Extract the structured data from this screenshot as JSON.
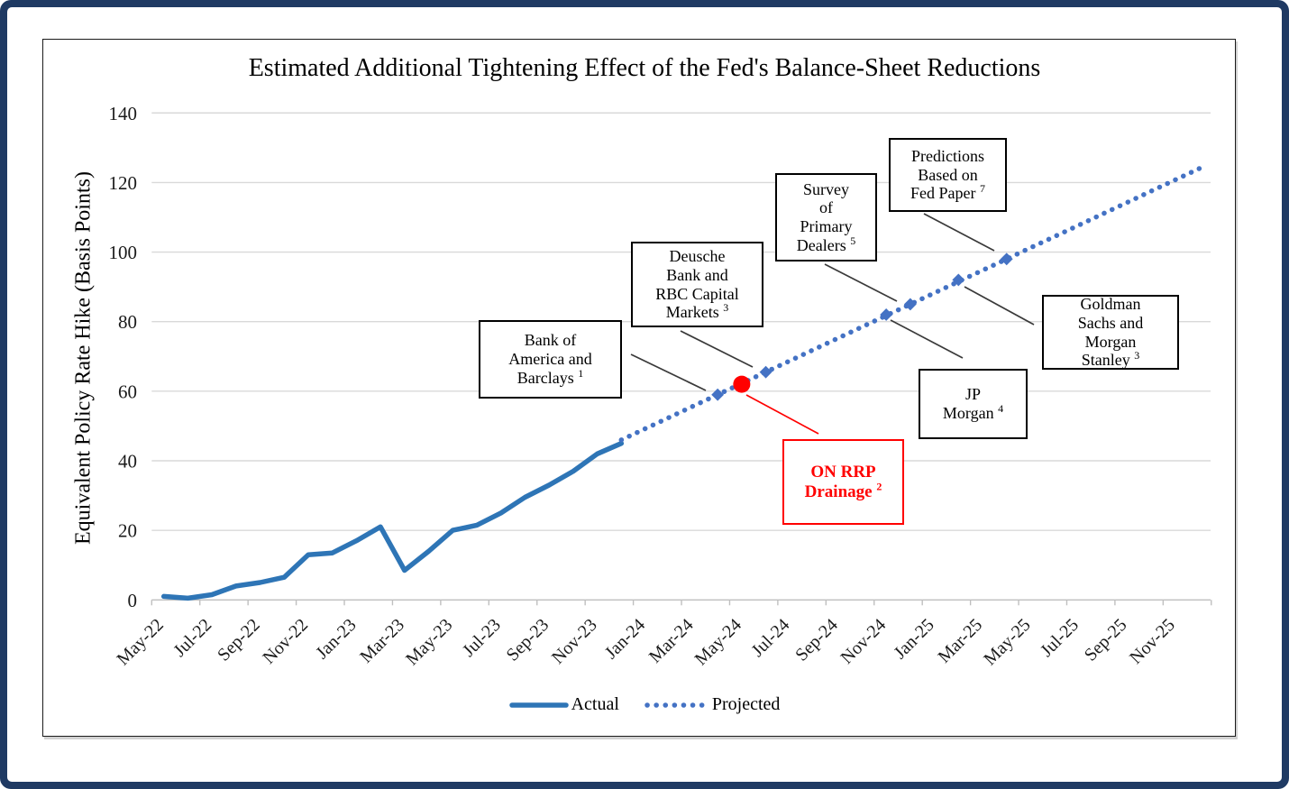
{
  "title": "Estimated Additional Tightening Effect of the Fed's Balance-Sheet Reductions",
  "y_axis": {
    "title": "Equivalent Policy Rate Hike (Basis Points)",
    "ticks": [
      0,
      20,
      40,
      60,
      80,
      100,
      120,
      140
    ]
  },
  "x_axis": {
    "labels": [
      "May-22",
      "Jul-22",
      "Sep-22",
      "Nov-22",
      "Jan-23",
      "Mar-23",
      "May-23",
      "Jul-23",
      "Sep-23",
      "Nov-23",
      "Jan-24",
      "Mar-24",
      "May-24",
      "Jul-24",
      "Sep-24",
      "Nov-24",
      "Jan-25",
      "Mar-25",
      "May-25",
      "Jul-25",
      "Sep-25",
      "Nov-25"
    ]
  },
  "legend": [
    {
      "label": "Actual",
      "style": "solid"
    },
    {
      "label": "Projected",
      "style": "dotted"
    }
  ],
  "colors": {
    "actual_line": "#2E75B6",
    "projected_line": "#4472C4",
    "marker_diamond": "#4472C4",
    "marker_red": "#FF0000",
    "gridline": "#D9D9D9",
    "axis": "#BFBFBF",
    "frame": "#1F3A63",
    "annotation_border": "#000000",
    "annotation_red": "#FF0000"
  },
  "chart_data": {
    "type": "line",
    "title": "Estimated Additional Tightening Effect of the Fed's Balance-Sheet Reductions",
    "xlabel": "",
    "ylabel": "Equivalent Policy Rate Hike (Basis Points)",
    "ylim": [
      0,
      140
    ],
    "grid": "horizontal",
    "legend_position": "bottom",
    "x_unit": "month",
    "series": [
      {
        "name": "Actual",
        "style": "solid",
        "months": [
          "May-22",
          "Jun-22",
          "Jul-22",
          "Aug-22",
          "Sep-22",
          "Oct-22",
          "Nov-22",
          "Dec-22",
          "Jan-23",
          "Feb-23",
          "Mar-23",
          "Apr-23",
          "May-23",
          "Jun-23",
          "Jul-23",
          "Aug-23",
          "Sep-23",
          "Oct-23",
          "Nov-23",
          "Dec-23"
        ],
        "values": [
          1,
          0.5,
          1.5,
          4,
          5,
          6.5,
          13,
          13.5,
          17,
          21,
          8.5,
          14,
          20,
          21.5,
          25,
          29.5,
          33,
          37,
          42,
          45
        ]
      },
      {
        "name": "Projected",
        "style": "dotted",
        "months": [
          "Dec-23",
          "Jan-24",
          "Feb-24",
          "Mar-24",
          "Apr-24",
          "May-24",
          "Jun-24",
          "Jul-24",
          "Aug-24",
          "Sep-24",
          "Oct-24",
          "Nov-24",
          "Dec-24",
          "Jan-25",
          "Feb-25",
          "Mar-25",
          "Apr-25",
          "May-25",
          "Jun-25",
          "Jul-25",
          "Aug-25",
          "Sep-25",
          "Oct-25",
          "Nov-25",
          "Dec-25"
        ],
        "values": [
          46,
          49.25,
          52.5,
          55.75,
          59,
          62.25,
          65.5,
          68.75,
          72,
          75.25,
          78.5,
          81.75,
          85,
          88.25,
          91.5,
          94.75,
          98,
          101.25,
          104.5,
          107.75,
          111,
          114.25,
          117.5,
          120.75,
          124
        ]
      }
    ],
    "markers": [
      {
        "month": "Apr-24",
        "value": 59,
        "shape": "diamond",
        "color": "#4472C4",
        "label": "Bank of America and Barclays",
        "footnote": "1"
      },
      {
        "month": "May-24",
        "value": 62,
        "shape": "circle",
        "color": "#FF0000",
        "label": "ON RRP Drainage",
        "footnote": "2"
      },
      {
        "month": "Jun-24",
        "value": 65.5,
        "shape": "diamond",
        "color": "#4472C4",
        "label": "Deusche Bank and RBC Capital Markets",
        "footnote": "3"
      },
      {
        "month": "Nov-24",
        "value": 82,
        "shape": "diamond",
        "color": "#4472C4",
        "label": "JP Morgan",
        "footnote": "4"
      },
      {
        "month": "Dec-24",
        "value": 85,
        "shape": "diamond",
        "color": "#4472C4",
        "label": "Survey of Primary Dealers",
        "footnote": "5"
      },
      {
        "month": "Feb-25",
        "value": 92,
        "shape": "diamond",
        "color": "#4472C4",
        "label": "Goldman Sachs and Morgan Stanley",
        "footnote": "3"
      },
      {
        "month": "Apr-25",
        "value": 98,
        "shape": "diamond",
        "color": "#4472C4",
        "label": "Predictions Based on Fed Paper",
        "footnote": "7"
      }
    ]
  },
  "annotations": [
    {
      "id": "bofa",
      "lines": [
        "Bank of",
        "America and",
        "Barclays"
      ],
      "footnote": "1",
      "color": "black"
    },
    {
      "id": "deusche",
      "lines": [
        "Deusche",
        "Bank and",
        "RBC Capital",
        "Markets"
      ],
      "footnote": "3",
      "color": "black"
    },
    {
      "id": "survey",
      "lines": [
        "Survey",
        "of",
        "Primary",
        "Dealers"
      ],
      "footnote": "5",
      "color": "black"
    },
    {
      "id": "predictions",
      "lines": [
        "Predictions",
        "Based on",
        "Fed Paper"
      ],
      "footnote": "7",
      "color": "black"
    },
    {
      "id": "goldman",
      "lines": [
        "Goldman",
        "Sachs and",
        "Morgan",
        "Stanley"
      ],
      "footnote": "3",
      "color": "black"
    },
    {
      "id": "jpm",
      "lines": [
        "JP",
        "Morgan"
      ],
      "footnote": "4",
      "color": "black"
    },
    {
      "id": "rrp",
      "lines": [
        "ON RRP",
        "Drainage"
      ],
      "footnote": "2",
      "color": "red"
    }
  ]
}
